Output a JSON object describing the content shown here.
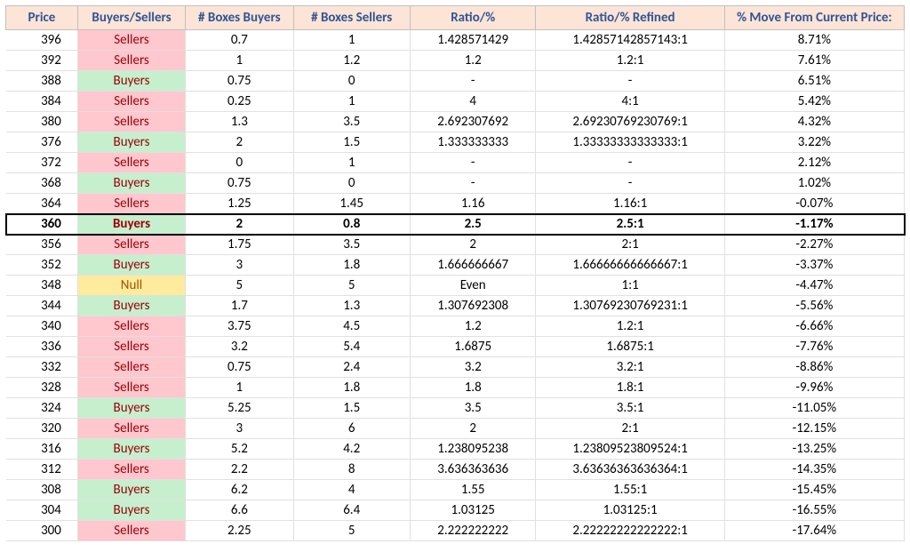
{
  "table": {
    "header_bg": "#fce4d6",
    "header_fg": "#2f5597",
    "buyers_bg": "#c6efce",
    "sellers_bg": "#ffc7ce",
    "null_bg": "#ffeb9c",
    "row_border": "#e0e0e0",
    "highlight_border": "#000000",
    "font_family": "Calibri",
    "header_fontsize": 15,
    "cell_fontsize": 15,
    "columns": [
      {
        "key": "price",
        "label": "Price",
        "width": "8%",
        "class": "c-price"
      },
      {
        "key": "bs",
        "label": "Buyers/Sellers",
        "width": "12%",
        "class": "c-bs"
      },
      {
        "key": "nbb",
        "label": "# Boxes Buyers",
        "width": "12%",
        "class": "c-nbb"
      },
      {
        "key": "nbs",
        "label": "# Boxes Sellers",
        "width": "13%",
        "class": "c-nbs"
      },
      {
        "key": "ratio",
        "label": "Ratio/%",
        "width": "14%",
        "class": "c-ratio"
      },
      {
        "key": "rref",
        "label": "Ratio/% Refined",
        "width": "21%",
        "class": "c-rref"
      },
      {
        "key": "move",
        "label": "% Move From Current Price:",
        "width": "20%",
        "class": "c-move"
      }
    ],
    "rows": [
      {
        "price": "396",
        "bs": "Sellers",
        "nbb": "0.7",
        "nbs": "1",
        "ratio": "1.428571429",
        "rref": "1.42857142857143:1",
        "move": "8.71%",
        "hl": false
      },
      {
        "price": "392",
        "bs": "Sellers",
        "nbb": "1",
        "nbs": "1.2",
        "ratio": "1.2",
        "rref": "1.2:1",
        "move": "7.61%",
        "hl": false
      },
      {
        "price": "388",
        "bs": "Buyers",
        "nbb": "0.75",
        "nbs": "0",
        "ratio": "-",
        "rref": "-",
        "move": "6.51%",
        "hl": false
      },
      {
        "price": "384",
        "bs": "Sellers",
        "nbb": "0.25",
        "nbs": "1",
        "ratio": "4",
        "rref": "4:1",
        "move": "5.42%",
        "hl": false
      },
      {
        "price": "380",
        "bs": "Sellers",
        "nbb": "1.3",
        "nbs": "3.5",
        "ratio": "2.692307692",
        "rref": "2.69230769230769:1",
        "move": "4.32%",
        "hl": false
      },
      {
        "price": "376",
        "bs": "Buyers",
        "nbb": "2",
        "nbs": "1.5",
        "ratio": "1.333333333",
        "rref": "1.33333333333333:1",
        "move": "3.22%",
        "hl": false
      },
      {
        "price": "372",
        "bs": "Sellers",
        "nbb": "0",
        "nbs": "1",
        "ratio": "-",
        "rref": "-",
        "move": "2.12%",
        "hl": false
      },
      {
        "price": "368",
        "bs": "Buyers",
        "nbb": "0.75",
        "nbs": "0",
        "ratio": "-",
        "rref": "-",
        "move": "1.02%",
        "hl": false
      },
      {
        "price": "364",
        "bs": "Sellers",
        "nbb": "1.25",
        "nbs": "1.45",
        "ratio": "1.16",
        "rref": "1.16:1",
        "move": "-0.07%",
        "hl": false
      },
      {
        "price": "360",
        "bs": "Buyers",
        "nbb": "2",
        "nbs": "0.8",
        "ratio": "2.5",
        "rref": "2.5:1",
        "move": "-1.17%",
        "hl": true
      },
      {
        "price": "356",
        "bs": "Sellers",
        "nbb": "1.75",
        "nbs": "3.5",
        "ratio": "2",
        "rref": "2:1",
        "move": "-2.27%",
        "hl": false
      },
      {
        "price": "352",
        "bs": "Buyers",
        "nbb": "3",
        "nbs": "1.8",
        "ratio": "1.666666667",
        "rref": "1.66666666666667:1",
        "move": "-3.37%",
        "hl": false
      },
      {
        "price": "348",
        "bs": "Null",
        "nbb": "5",
        "nbs": "5",
        "ratio": "Even",
        "rref": "1:1",
        "move": "-4.47%",
        "hl": false
      },
      {
        "price": "344",
        "bs": "Buyers",
        "nbb": "1.7",
        "nbs": "1.3",
        "ratio": "1.307692308",
        "rref": "1.30769230769231:1",
        "move": "-5.56%",
        "hl": false
      },
      {
        "price": "340",
        "bs": "Sellers",
        "nbb": "3.75",
        "nbs": "4.5",
        "ratio": "1.2",
        "rref": "1.2:1",
        "move": "-6.66%",
        "hl": false
      },
      {
        "price": "336",
        "bs": "Sellers",
        "nbb": "3.2",
        "nbs": "5.4",
        "ratio": "1.6875",
        "rref": "1.6875:1",
        "move": "-7.76%",
        "hl": false
      },
      {
        "price": "332",
        "bs": "Sellers",
        "nbb": "0.75",
        "nbs": "2.4",
        "ratio": "3.2",
        "rref": "3.2:1",
        "move": "-8.86%",
        "hl": false
      },
      {
        "price": "328",
        "bs": "Sellers",
        "nbb": "1",
        "nbs": "1.8",
        "ratio": "1.8",
        "rref": "1.8:1",
        "move": "-9.96%",
        "hl": false
      },
      {
        "price": "324",
        "bs": "Buyers",
        "nbb": "5.25",
        "nbs": "1.5",
        "ratio": "3.5",
        "rref": "3.5:1",
        "move": "-11.05%",
        "hl": false
      },
      {
        "price": "320",
        "bs": "Sellers",
        "nbb": "3",
        "nbs": "6",
        "ratio": "2",
        "rref": "2:1",
        "move": "-12.15%",
        "hl": false
      },
      {
        "price": "316",
        "bs": "Buyers",
        "nbb": "5.2",
        "nbs": "4.2",
        "ratio": "1.238095238",
        "rref": "1.23809523809524:1",
        "move": "-13.25%",
        "hl": false
      },
      {
        "price": "312",
        "bs": "Sellers",
        "nbb": "2.2",
        "nbs": "8",
        "ratio": "3.636363636",
        "rref": "3.63636363636364:1",
        "move": "-14.35%",
        "hl": false
      },
      {
        "price": "308",
        "bs": "Buyers",
        "nbb": "6.2",
        "nbs": "4",
        "ratio": "1.55",
        "rref": "1.55:1",
        "move": "-15.45%",
        "hl": false
      },
      {
        "price": "304",
        "bs": "Buyers",
        "nbb": "6.6",
        "nbs": "6.4",
        "ratio": "1.03125",
        "rref": "1.03125:1",
        "move": "-16.55%",
        "hl": false
      },
      {
        "price": "300",
        "bs": "Sellers",
        "nbb": "2.25",
        "nbs": "5",
        "ratio": "2.222222222",
        "rref": "2.22222222222222:1",
        "move": "-17.64%",
        "hl": false
      }
    ]
  }
}
